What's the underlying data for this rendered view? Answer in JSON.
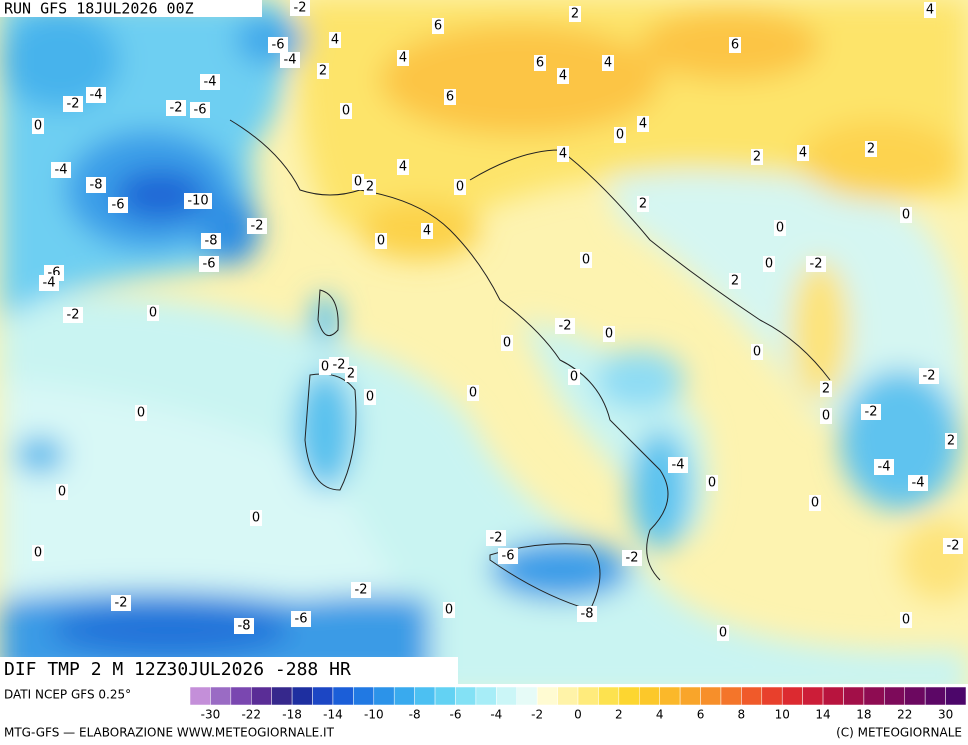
{
  "header": {
    "run": "RUN GFS 18JUL2026 00Z"
  },
  "map": {
    "field_title": "DIF TMP 2 M 12Z30JUL2026 -288 HR",
    "source": "DATI NCEP GFS 0.25°",
    "contour_labels": [
      -2,
      2,
      4,
      6,
      -6,
      4,
      -4,
      6,
      4,
      6,
      4,
      4,
      2,
      -4,
      -2,
      -4,
      -2,
      -6,
      6,
      0,
      0,
      0,
      4,
      2,
      4,
      2,
      4,
      4,
      -4,
      -8,
      0,
      2,
      0,
      -6,
      -10,
      2,
      0,
      -2,
      4,
      0,
      -8,
      0,
      -6,
      0,
      0,
      -2,
      -6,
      -4,
      2,
      -2,
      0,
      -2,
      0,
      0,
      0,
      0,
      -2,
      2,
      0,
      -2,
      0,
      0,
      2,
      0,
      -2,
      0,
      2,
      -4,
      -4,
      0,
      -4,
      0,
      0,
      0,
      -2,
      -6,
      -2,
      -2,
      0,
      -2,
      -2,
      0,
      -6,
      -8,
      -8,
      0,
      0
    ]
  },
  "legend": {
    "ticks": [
      -30,
      -22,
      -18,
      -14,
      -10,
      -8,
      -6,
      -4,
      -2,
      0,
      2,
      4,
      6,
      8,
      10,
      14,
      18,
      22,
      30
    ]
  },
  "footer": {
    "left": "MTG-GFS — ELABORAZIONE WWW.METEOGIORNALE.IT",
    "right": "(C) METEOGIORNALE"
  }
}
